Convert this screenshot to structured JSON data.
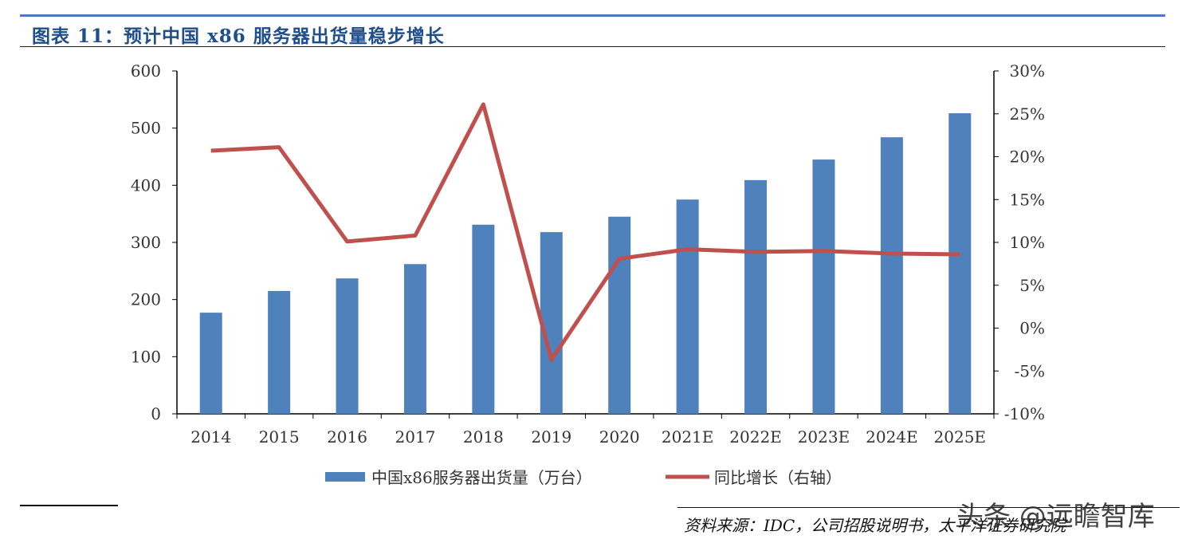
{
  "title": "图表 11：预计中国 x86 服务器出货量稳步增长",
  "source": "资料来源：IDC，公司招股说明书，太平洋证券研究院",
  "watermark": "头条 @远瞻智库",
  "chart_data": {
    "type": "bar+line",
    "categories": [
      "2014",
      "2015",
      "2016",
      "2017",
      "2018",
      "2019",
      "2020",
      "2021E",
      "2022E",
      "2023E",
      "2024E",
      "2025E"
    ],
    "series": [
      {
        "name": "中国x86服务器出货量（万台）",
        "type": "bar",
        "axis": "left",
        "color": "#4f81bd",
        "values": [
          177,
          215,
          237,
          262,
          331,
          318,
          345,
          375,
          409,
          445,
          484,
          526
        ]
      },
      {
        "name": "同比增长（右轴）",
        "type": "line",
        "axis": "right",
        "color": "#c0504d",
        "values": [
          20.7,
          21.1,
          10.1,
          10.8,
          26.1,
          -3.7,
          8.1,
          9.2,
          8.9,
          9.0,
          8.7,
          8.6
        ]
      }
    ],
    "ylim": [
      0,
      600
    ],
    "yticks": [
      "0",
      "100",
      "200",
      "300",
      "400",
      "500",
      "600"
    ],
    "y2lim": [
      -10,
      30
    ],
    "y2ticks": [
      "-10%",
      "-5%",
      "0%",
      "5%",
      "10%",
      "15%",
      "20%",
      "25%",
      "30%"
    ],
    "legend": "bottom",
    "grid": false
  }
}
